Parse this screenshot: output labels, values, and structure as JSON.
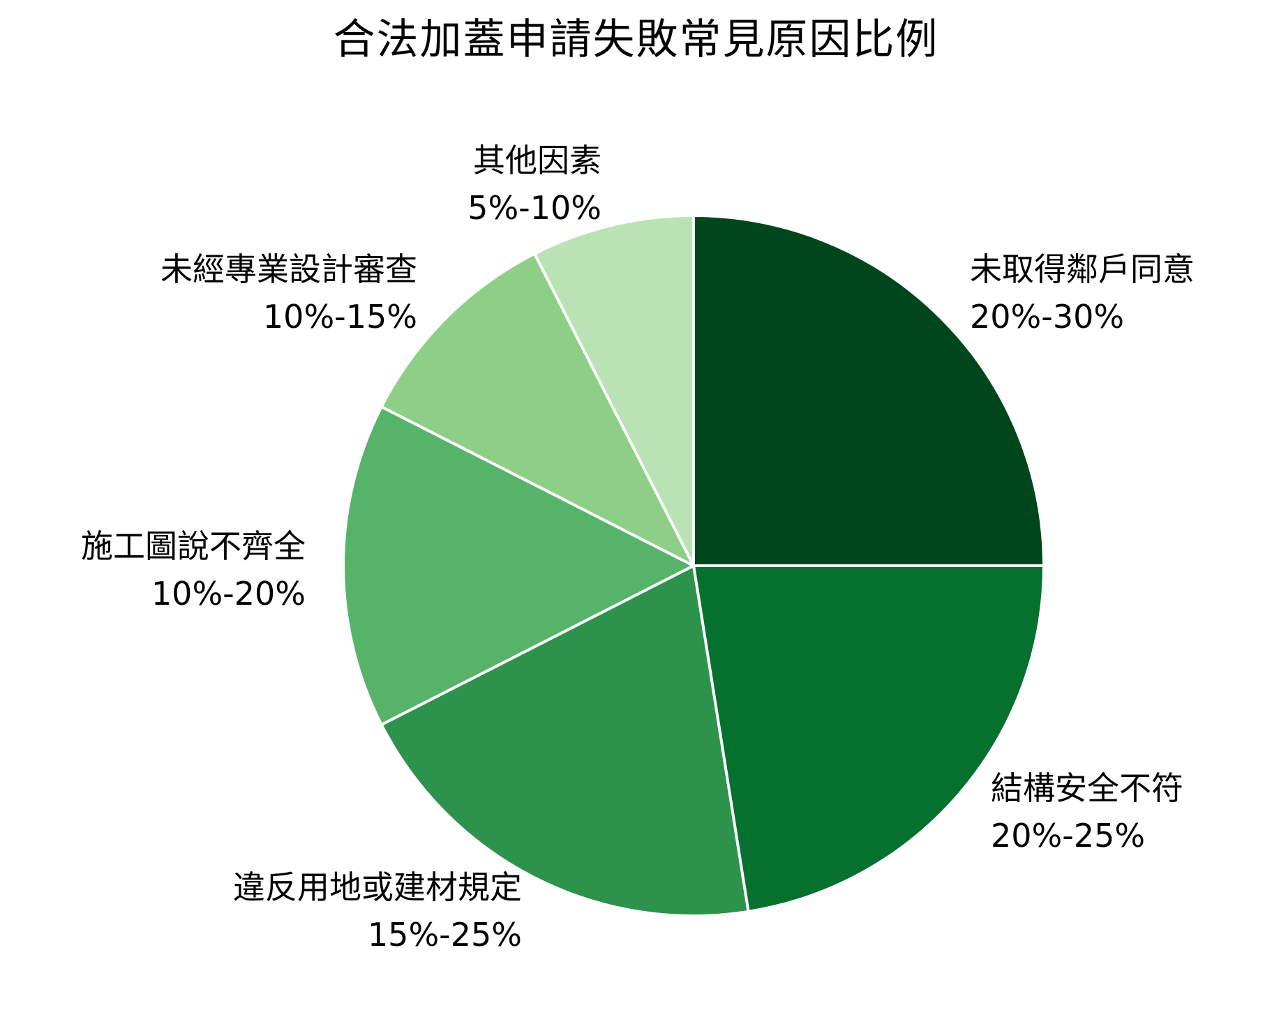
{
  "chart_data": {
    "type": "pie",
    "title": "合法加蓋申請失敗常見原因比例",
    "slices": [
      {
        "label": "未取得鄰戶同意",
        "range": "20%-30%",
        "value": 25,
        "color": "#00461c"
      },
      {
        "label": "結構安全不符",
        "range": "20%-25%",
        "value": 22.5,
        "color": "#06702f"
      },
      {
        "label": "違反用地或建材規定",
        "range": "15%-25%",
        "value": 20,
        "color": "#2d924c"
      },
      {
        "label": "施工圖說不齊全",
        "range": "10%-20%",
        "value": 15,
        "color": "#56b46a"
      },
      {
        "label": "未經專業設計審查",
        "range": "10%-15%",
        "value": 10,
        "color": "#8ecf87"
      },
      {
        "label": "其他因素",
        "range": "5%-10%",
        "value": 7.5,
        "color": "#b9e3b4"
      }
    ]
  }
}
